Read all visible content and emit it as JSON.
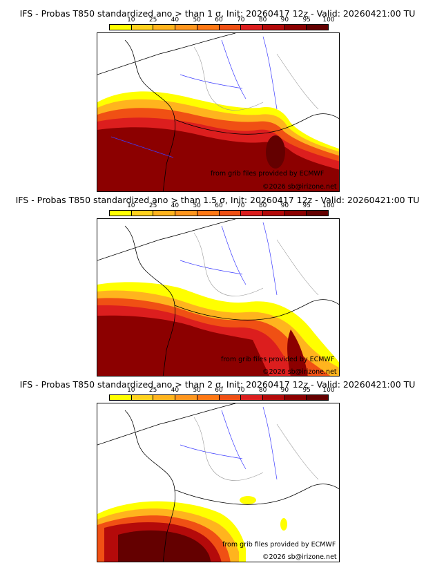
{
  "legend": {
    "levels": [
      "10",
      "25",
      "40",
      "50",
      "60",
      "70",
      "80",
      "90",
      "95",
      "100"
    ],
    "colors": [
      "#ffff00",
      "#ffd21e",
      "#ffb41e",
      "#ff961e",
      "#ff7814",
      "#f05014",
      "#dc1e1e",
      "#b40a0a",
      "#8c0000",
      "#640000"
    ]
  },
  "credits": {
    "source": "from grib files provided by ECMWF",
    "copyright": "©2026 sb@irizone.net"
  },
  "panels": [
    {
      "title": "IFS - Probas T850  standardized ano > than 1 σ, Init: 20260417 12z - Valid: 20260421:00 TU"
    },
    {
      "title": "IFS - Probas T850  standardized ano > than 1.5 σ, Init: 20260417 12z - Valid: 20260421:00 TU"
    },
    {
      "title": "IFS - Probas T850  standardized ano > than 2 σ, Init: 20260417 12z - Valid: 20260421:00 TU"
    }
  ]
}
